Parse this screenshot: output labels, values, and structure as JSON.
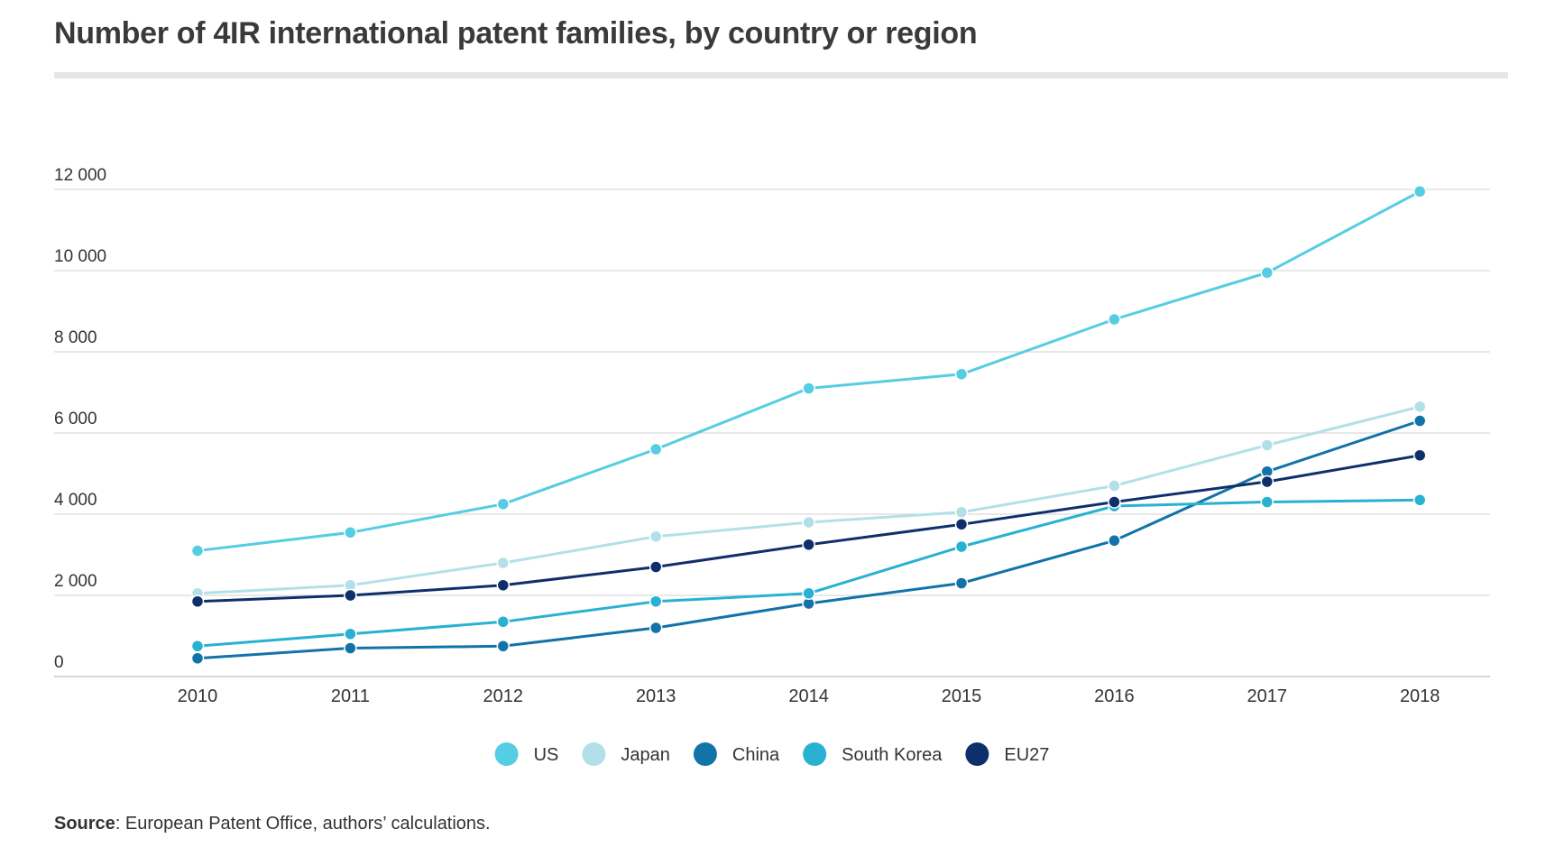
{
  "chart_data": {
    "type": "line",
    "title": "Number of 4IR international patent families, by country or region",
    "x": [
      "2010",
      "2011",
      "2012",
      "2013",
      "2014",
      "2015",
      "2016",
      "2017",
      "2018"
    ],
    "y_ticks": [
      "0",
      "2 000",
      "4 000",
      "6 000",
      "8 000",
      "10 000",
      "12 000"
    ],
    "ylim": [
      0,
      12000
    ],
    "grid": true,
    "legend_position": "bottom-center",
    "series": [
      {
        "name": "US",
        "color": "#55cde2",
        "values": [
          3100,
          3550,
          4250,
          5600,
          7100,
          7450,
          8800,
          9950,
          11950
        ]
      },
      {
        "name": "Japan",
        "color": "#b3e0e8",
        "values": [
          2050,
          2250,
          2800,
          3450,
          3800,
          4050,
          4700,
          5700,
          6650
        ]
      },
      {
        "name": "China",
        "color": "#1273a8",
        "values": [
          450,
          700,
          750,
          1200,
          1800,
          2300,
          3350,
          5050,
          6300
        ]
      },
      {
        "name": "South Korea",
        "color": "#29b1d2",
        "values": [
          750,
          1050,
          1350,
          1850,
          2050,
          3200,
          4200,
          4300,
          4350
        ]
      },
      {
        "name": "EU27",
        "color": "#0f2f6b",
        "values": [
          1850,
          2000,
          2250,
          2700,
          3250,
          3750,
          4300,
          4800,
          5450
        ]
      }
    ]
  },
  "source": {
    "label": "Source",
    "text": ": European Patent Office, authors’ calculations."
  }
}
